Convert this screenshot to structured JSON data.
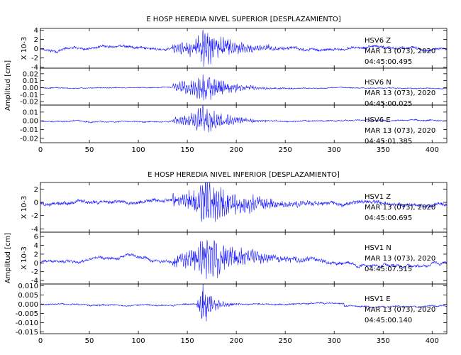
{
  "colors": {
    "trace": "#1a1aff",
    "axis": "#000000",
    "background": "#ffffff"
  },
  "figures": [
    {
      "title": "E HOSP HEREDIA NIVEL SUPERIOR [DESPLAZAMIENTO]",
      "ylabel": "Amplitud [cm]",
      "xticks": [
        "0",
        "50",
        "100",
        "150",
        "200",
        "250",
        "300",
        "350",
        "400"
      ],
      "panels": [
        {
          "scale_label": "X 10-3",
          "yticks": [
            "4",
            "2",
            "0",
            "-2",
            "-4"
          ],
          "info": [
            "HSV6 Z",
            "MAR 13 (073), 2020",
            "04:45:00.495"
          ]
        },
        {
          "scale_label": "",
          "yticks": [
            "0.02",
            "0.01",
            "0.00",
            "-0.01",
            "-0.02"
          ],
          "info": [
            "HSV6 N",
            "MAR 13 (073), 2020",
            "04:45:00.025"
          ]
        },
        {
          "scale_label": "",
          "yticks": [
            "0.01",
            "0.00",
            "-0.01",
            "-0.02"
          ],
          "info": [
            "HSV6 E",
            "MAR 13 (073), 2020",
            "04:45:01.385"
          ]
        }
      ]
    },
    {
      "title": "E HOSP HEREDIA NIVEL INFERIOR [DESPLAZAMIENTO]",
      "ylabel": "Amplitud [cm]",
      "xticks": [
        "0",
        "50",
        "100",
        "150",
        "200",
        "250",
        "300",
        "350",
        "400"
      ],
      "panels": [
        {
          "scale_label": "X 10-3",
          "yticks": [
            "2",
            "0",
            "-2",
            "-4"
          ],
          "info": [
            "HSV1 Z",
            "MAR 13 (073), 2020",
            "04:45:00.695"
          ]
        },
        {
          "scale_label": "X 10-3",
          "yticks": [
            "6",
            "4",
            "2",
            "0",
            "-2",
            "-4"
          ],
          "info": [
            "HSV1 N",
            "MAR 13 (073), 2020",
            "04:45:07.515"
          ]
        },
        {
          "scale_label": "",
          "yticks": [
            "0.010",
            "0.005",
            "0.000",
            "-0.005",
            "-0.010",
            "-0.015"
          ],
          "info": [
            "HSV1 E",
            "MAR 13 (073), 2020",
            "04:45:00.140"
          ]
        }
      ]
    }
  ],
  "chart_data": [
    {
      "type": "line",
      "title": "E HOSP HEREDIA NIVEL SUPERIOR [DESPLAZAMIENTO]",
      "ylabel": "Amplitud [cm]",
      "xlim": [
        0,
        415
      ],
      "series": [
        {
          "name": "HSV6 Z",
          "unit_scale": "X 10-3",
          "ylim": [
            -4.2,
            4.4
          ],
          "noise": 0.45,
          "peak": 3.9,
          "onset": 135,
          "peak_time": 168,
          "tail": 30,
          "drift": 0.35,
          "seed": 11
        },
        {
          "name": "HSV6 N",
          "ylim": [
            -0.025,
            0.028
          ],
          "noise": 0.0012,
          "peak": 0.024,
          "onset": 135,
          "peak_time": 168,
          "tail": 22,
          "drift": 0.0006,
          "seed": 23
        },
        {
          "name": "HSV6 E",
          "ylim": [
            -0.025,
            0.018
          ],
          "noise": 0.0012,
          "peak": 0.017,
          "onset": 135,
          "peak_time": 168,
          "tail": 22,
          "drift": 0.0008,
          "seed": 37
        }
      ]
    },
    {
      "type": "line",
      "title": "E HOSP HEREDIA NIVEL INFERIOR [DESPLAZAMIENTO]",
      "ylabel": "Amplitud [cm]",
      "xlim": [
        0,
        415
      ],
      "series": [
        {
          "name": "HSV1 Z",
          "unit_scale": "X 10-3",
          "ylim": [
            -4.5,
            3.0
          ],
          "noise": 0.45,
          "peak": 3.4,
          "onset": 135,
          "peak_time": 170,
          "tail": 40,
          "drift": 0.3,
          "seed": 53
        },
        {
          "name": "HSV1 N",
          "unit_scale": "X 10-3",
          "ylim": [
            -4.8,
            7.0
          ],
          "noise": 0.45,
          "peak": 4.8,
          "onset": 135,
          "peak_time": 170,
          "tail": 40,
          "drift": 0.8,
          "seed": 71
        },
        {
          "name": "HSV1 E",
          "ylim": [
            -0.016,
            0.011
          ],
          "noise": 0.0006,
          "peak": 0.012,
          "onset": 160,
          "peak_time": 166,
          "tail": 10,
          "drift": 0.0004,
          "seed": 89,
          "step_at": 310,
          "step": -0.0015
        }
      ]
    }
  ]
}
